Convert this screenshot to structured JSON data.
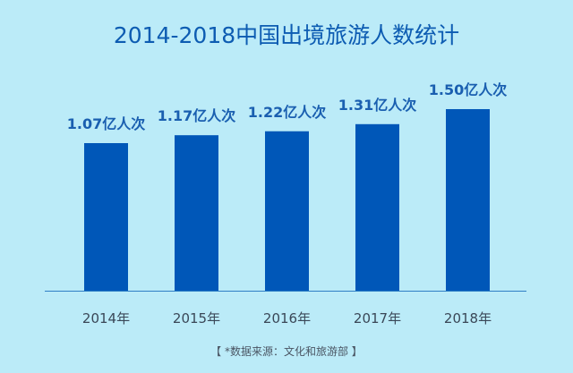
{
  "chart_data": {
    "type": "bar",
    "title": "2014-2018中国出境旅游人数统计",
    "categories": [
      "2014年",
      "2015年",
      "2016年",
      "2017年",
      "2018年"
    ],
    "values": [
      1.07,
      1.17,
      1.22,
      1.31,
      1.5
    ],
    "data_labels": [
      "1.07亿人次",
      "1.17亿人次",
      "1.22亿人次",
      "1.31亿人次",
      "1.50亿人次"
    ],
    "unit": "亿人次",
    "xlabel": "",
    "ylabel": "",
    "grid": false,
    "legend": "none",
    "source": "【 *数据来源：文化和旅游部 】",
    "colors": {
      "background": "#bbebf8",
      "bar": "#0057b8",
      "label": "#1a5fb0",
      "axis": "#2f7fc4"
    }
  }
}
